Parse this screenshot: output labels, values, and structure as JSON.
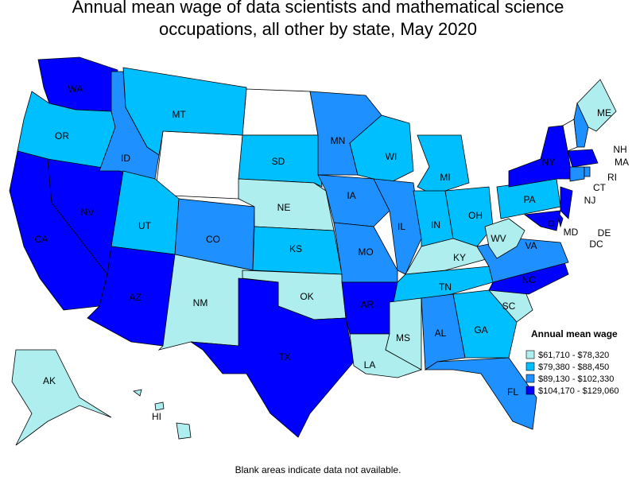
{
  "title": "Annual mean wage of data scientists and mathematical science occupations, all other by state, May 2020",
  "legend": {
    "title": "Annual mean wage",
    "items": [
      {
        "label": "$61,710 - $78,320",
        "color": "#aeeeee"
      },
      {
        "label": "$79,380 - $88,450",
        "color": "#00bfff"
      },
      {
        "label": "$89,130 - $102,330",
        "color": "#1e90ff"
      },
      {
        "label": "$104,170 - $129,060",
        "color": "#0000ff"
      }
    ]
  },
  "states": [
    {
      "name": "WA",
      "color": "#0000ff"
    },
    {
      "name": "OR",
      "color": "#00bfff"
    },
    {
      "name": "CA",
      "color": "#0000ff"
    },
    {
      "name": "NV",
      "color": "#0000ff"
    },
    {
      "name": "ID",
      "color": "#1e90ff"
    },
    {
      "name": "MT",
      "color": "#00bfff"
    },
    {
      "name": "UT",
      "color": "#00bfff"
    },
    {
      "name": "AZ",
      "color": "#0000ff"
    },
    {
      "name": "CO",
      "color": "#1e90ff"
    },
    {
      "name": "NM",
      "color": "#aeeeee"
    },
    {
      "name": "SD",
      "color": "#00bfff"
    },
    {
      "name": "NE",
      "color": "#aeeeee"
    },
    {
      "name": "KS",
      "color": "#00bfff"
    },
    {
      "name": "OK",
      "color": "#aeeeee"
    },
    {
      "name": "TX",
      "color": "#0000ff"
    },
    {
      "name": "MN",
      "color": "#1e90ff"
    },
    {
      "name": "IA",
      "color": "#1e90ff"
    },
    {
      "name": "MO",
      "color": "#1e90ff"
    },
    {
      "name": "AR",
      "color": "#0000ff"
    },
    {
      "name": "LA",
      "color": "#aeeeee"
    },
    {
      "name": "WI",
      "color": "#00bfff"
    },
    {
      "name": "IL",
      "color": "#1e90ff"
    },
    {
      "name": "MI",
      "color": "#00bfff"
    },
    {
      "name": "IN",
      "color": "#00bfff"
    },
    {
      "name": "OH",
      "color": "#00bfff"
    },
    {
      "name": "KY",
      "color": "#aeeeee"
    },
    {
      "name": "TN",
      "color": "#00bfff"
    },
    {
      "name": "MS",
      "color": "#aeeeee"
    },
    {
      "name": "AL",
      "color": "#1e90ff"
    },
    {
      "name": "GA",
      "color": "#00bfff"
    },
    {
      "name": "FL",
      "color": "#1e90ff"
    },
    {
      "name": "SC",
      "color": "#aeeeee"
    },
    {
      "name": "NC",
      "color": "#0000ff"
    },
    {
      "name": "VA",
      "color": "#1e90ff"
    },
    {
      "name": "WV",
      "color": "#aeeeee"
    },
    {
      "name": "PA",
      "color": "#00bfff"
    },
    {
      "name": "NY",
      "color": "#0000ff"
    },
    {
      "name": "ME",
      "color": "#aeeeee"
    },
    {
      "name": "NH",
      "color": "#1e90ff"
    },
    {
      "name": "MA",
      "color": "#0000ff"
    },
    {
      "name": "CT",
      "color": "#1e90ff"
    },
    {
      "name": "RI",
      "color": "#1e90ff"
    },
    {
      "name": "NJ",
      "color": "#0000ff"
    },
    {
      "name": "DE",
      "color": "#0000ff"
    },
    {
      "name": "MD",
      "color": "#0000ff"
    },
    {
      "name": "DC",
      "color": "#0000ff"
    },
    {
      "name": "AK",
      "color": "#aeeeee"
    },
    {
      "name": "HI",
      "color": "#aeeeee"
    }
  ],
  "note": "Blank areas indicate data not available."
}
